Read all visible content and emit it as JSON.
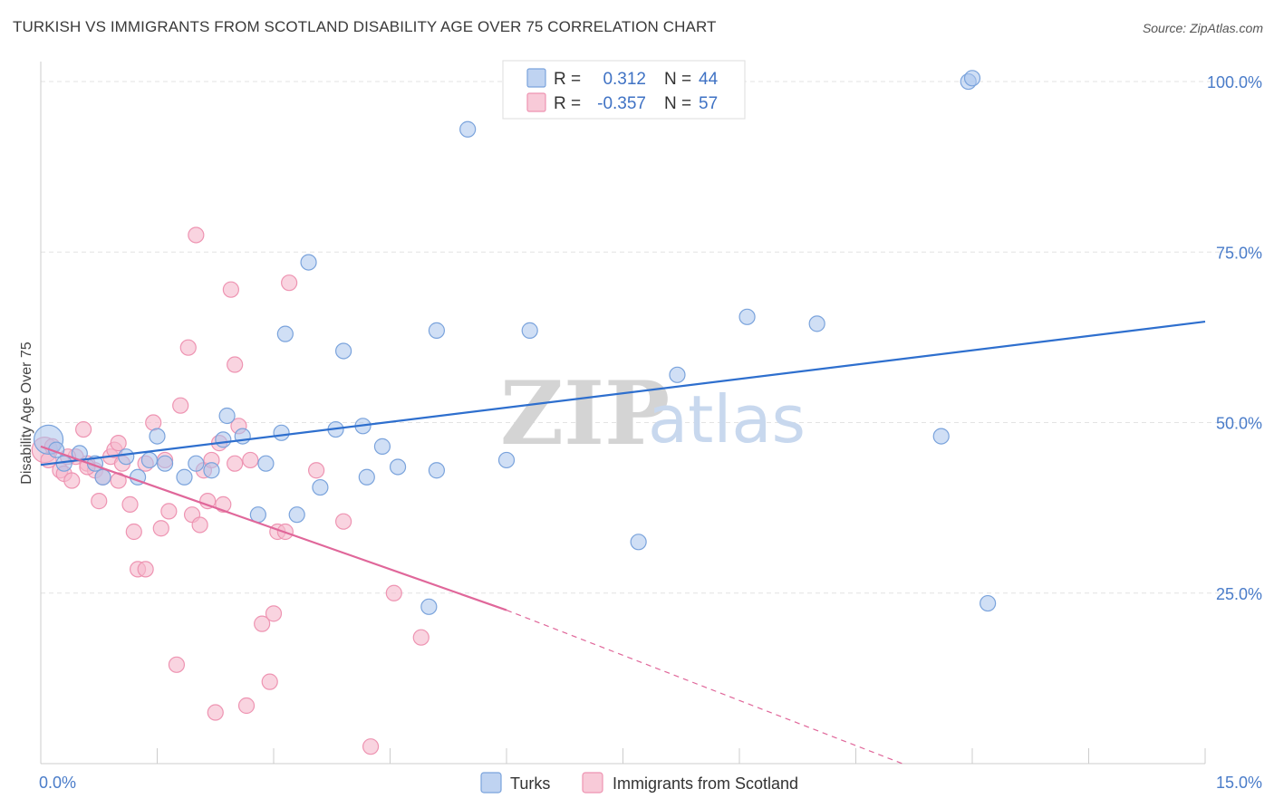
{
  "header": {
    "title": "TURKISH VS IMMIGRANTS FROM SCOTLAND DISABILITY AGE OVER 75 CORRELATION CHART",
    "source": "Source: ZipAtlas.com"
  },
  "watermark": {
    "zip": "ZIP",
    "atlas": "atlas"
  },
  "legend": {
    "r_label": "R =",
    "n_label": "N =",
    "rows": [
      {
        "r": "0.312",
        "n": "44"
      },
      {
        "r": "-0.357",
        "n": "57"
      }
    ]
  },
  "colors": {
    "turks_fill": "#aac4ec",
    "turks_stroke": "#7aa3dc",
    "turks_line": "#2e6fce",
    "scot_fill": "#f5b8cb",
    "scot_stroke": "#ee94b2",
    "scot_line": "#e0679a"
  },
  "chart_data": {
    "type": "scatter",
    "title": "TURKISH VS IMMIGRANTS FROM SCOTLAND DISABILITY AGE OVER 75 CORRELATION CHART",
    "xlabel": "",
    "ylabel": "Disability Age Over 75",
    "xlim": [
      0,
      15
    ],
    "ylim": [
      0,
      102
    ],
    "x_tick_labels": [
      "0.0%",
      "15.0%"
    ],
    "y_ticks": [
      25,
      50,
      75,
      100
    ],
    "y_tick_labels": [
      "25.0%",
      "50.0%",
      "75.0%",
      "100.0%"
    ],
    "grid": "horizontal dashed",
    "legend_placement": "top-center and bottom",
    "series": [
      {
        "name": "Turks",
        "r": 0.312,
        "n": 44,
        "trend": {
          "x": [
            0,
            15
          ],
          "y": [
            43.8,
            64.8
          ]
        },
        "points": [
          [
            0.1,
            47.5,
            16
          ],
          [
            0.2,
            46,
            10
          ],
          [
            0.5,
            45.5,
            10
          ],
          [
            0.3,
            44,
            10
          ],
          [
            0.7,
            44,
            10
          ],
          [
            0.8,
            42,
            10
          ],
          [
            1.1,
            45,
            10
          ],
          [
            1.25,
            42,
            10
          ],
          [
            1.4,
            44.5,
            10
          ],
          [
            1.5,
            48,
            10
          ],
          [
            1.6,
            44,
            10
          ],
          [
            1.85,
            42,
            10
          ],
          [
            2.0,
            44,
            10
          ],
          [
            2.2,
            43,
            10
          ],
          [
            2.35,
            47.5,
            10
          ],
          [
            2.4,
            51,
            10
          ],
          [
            2.6,
            48,
            10
          ],
          [
            2.8,
            36.5,
            10
          ],
          [
            2.9,
            44,
            10
          ],
          [
            3.1,
            48.5,
            10
          ],
          [
            3.15,
            63,
            10
          ],
          [
            3.3,
            36.5,
            10
          ],
          [
            3.45,
            73.5,
            10
          ],
          [
            3.6,
            40.5,
            10
          ],
          [
            3.8,
            49,
            10
          ],
          [
            3.9,
            60.5,
            10
          ],
          [
            4.15,
            49.5,
            10
          ],
          [
            4.2,
            42,
            10
          ],
          [
            4.4,
            46.5,
            10
          ],
          [
            4.6,
            43.5,
            10
          ],
          [
            5.1,
            43,
            10
          ],
          [
            5.1,
            63.5,
            10
          ],
          [
            5.0,
            23,
            10
          ],
          [
            5.5,
            93,
            10
          ],
          [
            6.0,
            44.5,
            10
          ],
          [
            6.3,
            63.5,
            10
          ],
          [
            7.7,
            32.5,
            10
          ],
          [
            8.2,
            57,
            10
          ],
          [
            9.1,
            65.5,
            10
          ],
          [
            10.0,
            64.5,
            10
          ],
          [
            11.6,
            48,
            10
          ],
          [
            11.95,
            100,
            10
          ],
          [
            12.2,
            23.5,
            10
          ],
          [
            12.0,
            100.5,
            10
          ]
        ]
      },
      {
        "name": "Immigrants from Scotland",
        "r": -0.357,
        "n": 57,
        "trend": {
          "x": [
            0,
            6
          ],
          "y": [
            46.5,
            22.5
          ]
        },
        "trend_dashed": {
          "x": [
            6,
            11.1
          ],
          "y": [
            22.5,
            0
          ]
        },
        "points": [
          [
            0.05,
            46,
            14
          ],
          [
            0.1,
            44.5,
            10
          ],
          [
            0.15,
            46.5,
            10
          ],
          [
            0.25,
            43,
            10
          ],
          [
            0.3,
            42.5,
            10
          ],
          [
            0.4,
            41.5,
            10
          ],
          [
            0.45,
            45,
            10
          ],
          [
            0.55,
            49,
            10
          ],
          [
            0.6,
            44,
            10
          ],
          [
            0.7,
            43,
            10
          ],
          [
            0.75,
            38.5,
            10
          ],
          [
            0.8,
            42,
            10
          ],
          [
            0.9,
            45,
            10
          ],
          [
            0.95,
            46,
            10
          ],
          [
            1.0,
            47,
            10
          ],
          [
            1.05,
            44,
            10
          ],
          [
            1.15,
            38,
            10
          ],
          [
            1.2,
            34,
            10
          ],
          [
            1.25,
            28.5,
            10
          ],
          [
            1.35,
            28.5,
            10
          ],
          [
            1.35,
            44,
            10
          ],
          [
            1.45,
            50,
            10
          ],
          [
            1.55,
            34.5,
            10
          ],
          [
            1.6,
            44.5,
            10
          ],
          [
            1.65,
            37,
            10
          ],
          [
            1.75,
            14.5,
            10
          ],
          [
            1.8,
            52.5,
            10
          ],
          [
            1.9,
            61,
            10
          ],
          [
            1.95,
            36.5,
            10
          ],
          [
            2.0,
            77.5,
            10
          ],
          [
            2.05,
            35,
            10
          ],
          [
            2.1,
            43,
            10
          ],
          [
            2.15,
            38.5,
            10
          ],
          [
            2.2,
            44.5,
            10
          ],
          [
            2.25,
            7.5,
            10
          ],
          [
            2.3,
            47,
            10
          ],
          [
            2.35,
            38,
            10
          ],
          [
            2.45,
            69.5,
            10
          ],
          [
            2.5,
            58.5,
            10
          ],
          [
            2.55,
            49.5,
            10
          ],
          [
            2.65,
            8.5,
            10
          ],
          [
            2.7,
            44.5,
            10
          ],
          [
            2.85,
            20.5,
            10
          ],
          [
            2.95,
            12,
            10
          ],
          [
            3.0,
            22,
            10
          ],
          [
            3.05,
            34,
            10
          ],
          [
            3.15,
            34,
            10
          ],
          [
            3.2,
            70.5,
            10
          ],
          [
            3.55,
            43,
            10
          ],
          [
            3.9,
            35.5,
            10
          ],
          [
            4.25,
            2.5,
            10
          ],
          [
            4.55,
            25,
            10
          ],
          [
            4.9,
            18.5,
            10
          ],
          [
            0.6,
            43.5,
            10
          ],
          [
            1.0,
            41.5,
            10
          ],
          [
            0.35,
            45,
            10
          ],
          [
            2.5,
            44,
            10
          ]
        ]
      }
    ]
  },
  "bottom_legend": [
    {
      "label": "Turks"
    },
    {
      "label": "Immigrants from Scotland"
    }
  ]
}
